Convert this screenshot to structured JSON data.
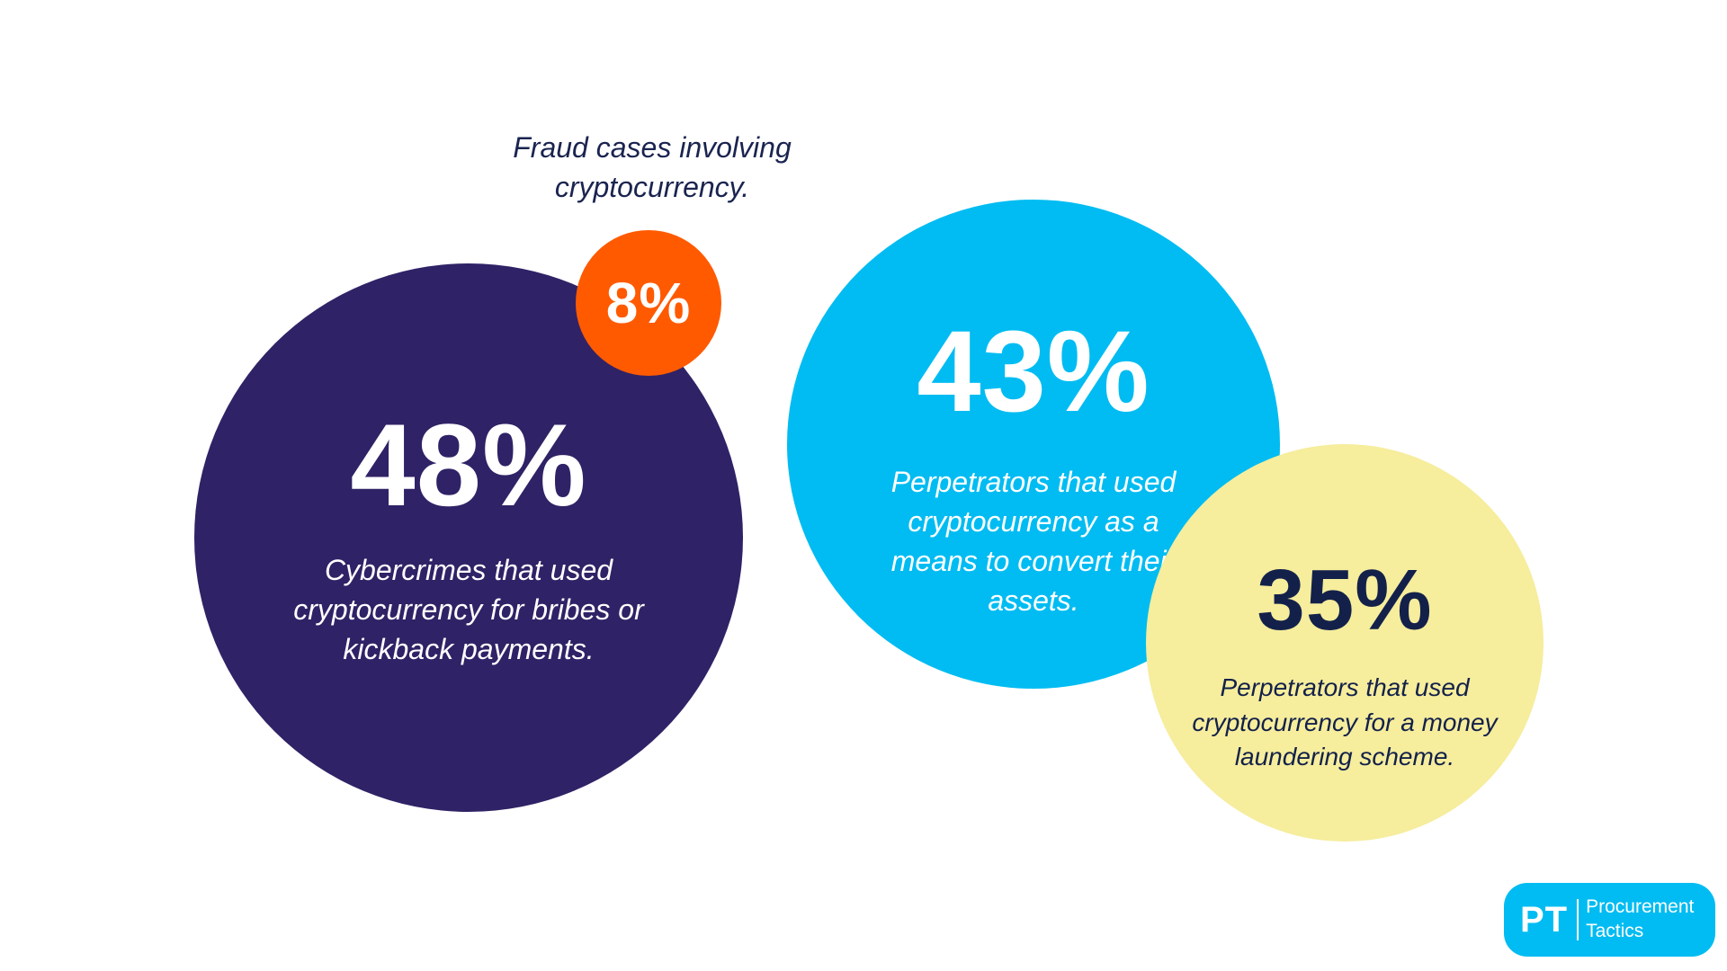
{
  "chart_data": {
    "type": "bubble-stats",
    "title": "",
    "items": [
      {
        "value": 48,
        "label": "48%",
        "description": "Cybercrimes that used cryptocurrency for bribes or kickback payments.",
        "color": "#302266"
      },
      {
        "value": 8,
        "label": "8%",
        "description": "Fraud cases involving cryptocurrency.",
        "color": "#ff5a00"
      },
      {
        "value": 43,
        "label": "43%",
        "description": "Perpetrators that used cryptocurrency as a means to convert their assets.",
        "color": "#00bcf2"
      },
      {
        "value": 35,
        "label": "35%",
        "description": "Perpetrators that used cryptocurrency for a money laundering scheme.",
        "color": "#f6ed9d"
      }
    ]
  },
  "logo": {
    "mark": "PT",
    "name_line1": "Procurement",
    "name_line2": "Tactics",
    "color": "#00bcf2"
  }
}
